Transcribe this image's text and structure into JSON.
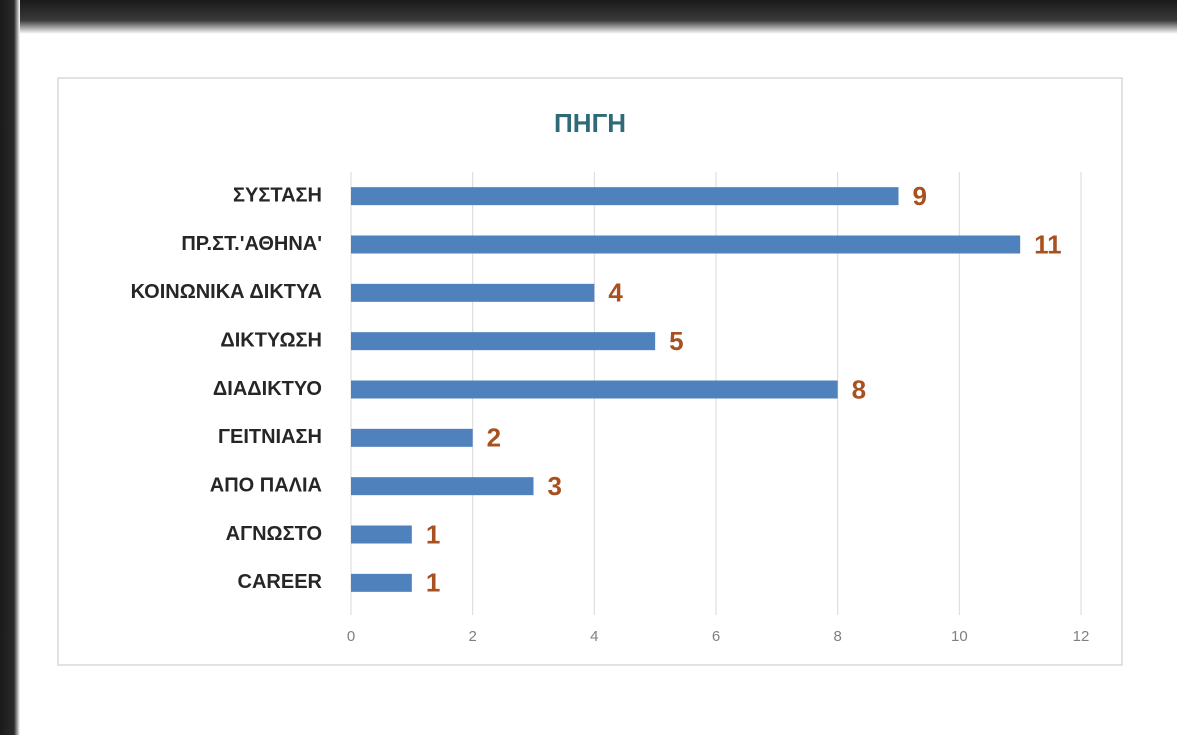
{
  "chart_data": {
    "type": "bar",
    "orientation": "horizontal",
    "title": "ΠΗΓΗ",
    "categories": [
      "ΣΥΣΤΑΣΗ",
      "ΠΡ.ΣΤ.'ΑΘΗΝΑ'",
      "ΚΟΙΝΩΝΙΚΑ ΔΙΚΤΥΑ",
      "ΔΙΚΤΥΩΣΗ",
      "ΔΙΑΔΙΚΤΥΟ",
      "ΓΕΙΤΝΙΑΣΗ",
      "ΑΠΟ ΠΑΛΙΑ",
      "ΑΓΝΩΣΤΟ",
      "CAREER"
    ],
    "values": [
      9,
      11,
      4,
      5,
      8,
      2,
      3,
      1,
      1
    ],
    "color": "#4f81bd",
    "xlim": [
      0,
      12
    ],
    "xticks": [
      0,
      2,
      4,
      6,
      8,
      10,
      12
    ],
    "grid": true
  }
}
